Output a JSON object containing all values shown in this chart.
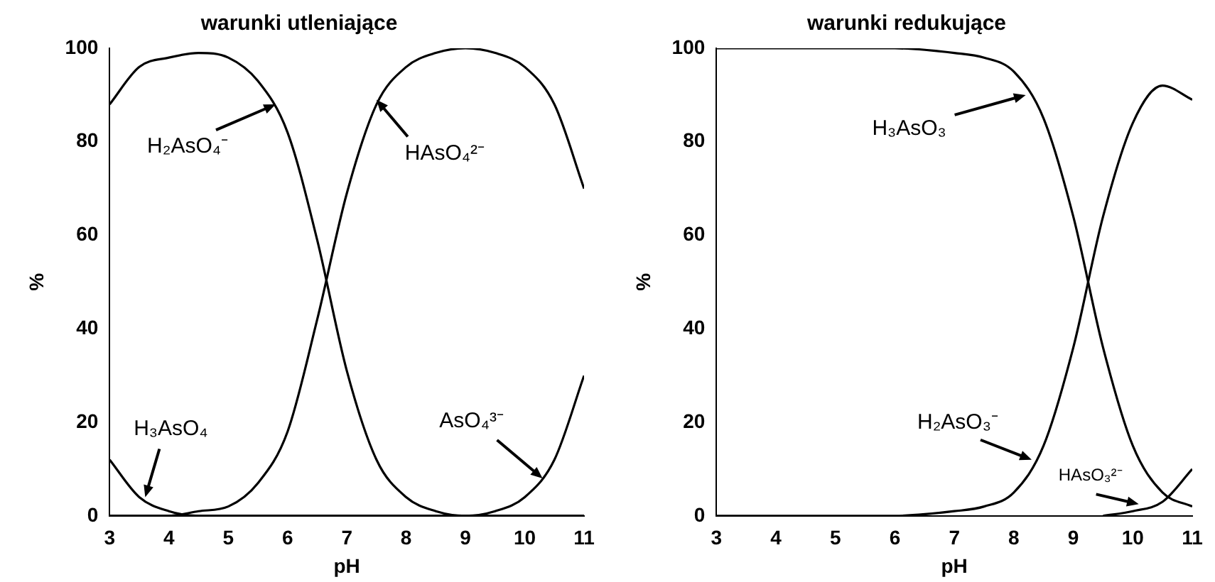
{
  "chart_data": [
    {
      "type": "line",
      "title": "warunki utleniające",
      "xlabel": "pH",
      "ylabel": "%",
      "x": [
        3,
        3.5,
        4,
        4.5,
        5,
        5.5,
        6,
        6.5,
        7,
        7.5,
        8,
        8.5,
        9,
        9.5,
        10,
        10.5,
        11
      ],
      "series": [
        {
          "color": "#000000",
          "values": [
            12,
            4,
            1,
            0,
            0,
            0,
            0,
            0,
            0,
            0,
            0,
            0,
            0,
            0,
            0,
            0,
            0
          ]
        },
        {
          "color": "#000000",
          "values": [
            88,
            96,
            98,
            99,
            98,
            93,
            82,
            59,
            31,
            12,
            4,
            1,
            0,
            0,
            0,
            0,
            0
          ]
        },
        {
          "color": "#000000",
          "values": [
            0,
            0,
            0,
            1,
            2,
            7,
            18,
            42,
            69,
            88,
            96,
            99,
            100,
            99,
            96,
            88,
            70
          ]
        },
        {
          "color": "#000000",
          "values": [
            0,
            0,
            0,
            0,
            0,
            0,
            0,
            0,
            0,
            0,
            0,
            0,
            0,
            1,
            4,
            12,
            30
          ]
        }
      ],
      "xlim": [
        3,
        11
      ],
      "xticks": [
        3,
        4,
        5,
        6,
        7,
        8,
        9,
        10,
        11
      ],
      "ylim": [
        0,
        100
      ],
      "yticks": [
        0,
        20,
        40,
        60,
        80,
        100
      ],
      "annotations": [
        {
          "text": "H₂AsO₄⁻",
          "x": 5.8,
          "y": 88
        },
        {
          "text": "HAsO₄²⁻",
          "x": 7.5,
          "y": 89
        },
        {
          "text": "H₃AsO₄",
          "x": 3.6,
          "y": 4
        },
        {
          "text": "AsO₄³⁻",
          "x": 10.3,
          "y": 8
        }
      ]
    },
    {
      "type": "line",
      "title": "warunki redukujące",
      "xlabel": "pH",
      "ylabel": "%",
      "x": [
        3,
        4,
        5,
        6,
        7,
        7.5,
        8,
        8.5,
        9,
        9.5,
        10,
        10.5,
        11
      ],
      "series": [
        {
          "color": "#000000",
          "values": [
            100,
            100,
            100,
            100,
            99,
            98,
            95,
            85,
            64,
            36,
            15,
            5,
            2
          ]
        },
        {
          "color": "#000000",
          "values": [
            0,
            0,
            0,
            0,
            1,
            2,
            5,
            15,
            36,
            64,
            84,
            92,
            89
          ]
        },
        {
          "color": "#000000",
          "values": [
            null,
            null,
            null,
            null,
            null,
            null,
            null,
            null,
            null,
            0,
            1,
            3,
            10
          ]
        }
      ],
      "xlim": [
        3,
        11
      ],
      "xticks": [
        3,
        4,
        5,
        6,
        7,
        8,
        9,
        10,
        11
      ],
      "ylim": [
        0,
        100
      ],
      "yticks": [
        0,
        20,
        40,
        60,
        80,
        100
      ],
      "annotations": [
        {
          "text": "H₃AsO₃",
          "x": 8.2,
          "y": 90
        },
        {
          "text": "H₂AsO₃⁻",
          "x": 8.3,
          "y": 12
        },
        {
          "text": "HAsO₃²⁻",
          "x": 10.1,
          "y": 2.5
        }
      ]
    }
  ]
}
